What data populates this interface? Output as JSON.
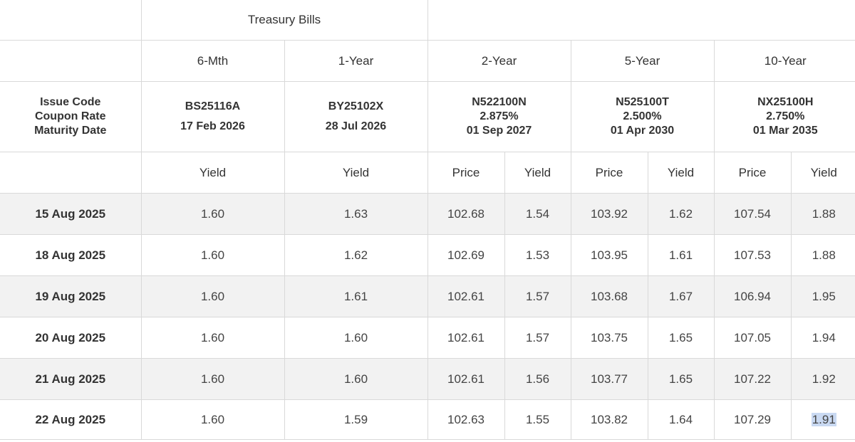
{
  "header": {
    "group_label": "Treasury Bills",
    "row_label_lines": [
      "Issue Code",
      "Coupon Rate",
      "Maturity Date"
    ],
    "tenors": [
      "6-Mth",
      "1-Year",
      "2-Year",
      "5-Year",
      "10-Year"
    ],
    "bills": [
      {
        "code": "BS25116A",
        "maturity": "17 Feb 2026"
      },
      {
        "code": "BY25102X",
        "maturity": "28 Jul 2026"
      }
    ],
    "bonds": [
      {
        "code": "N522100N",
        "coupon": "2.875%",
        "maturity": "01 Sep 2027"
      },
      {
        "code": "N525100T",
        "coupon": "2.500%",
        "maturity": "01 Apr 2030"
      },
      {
        "code": "NX25100H",
        "coupon": "2.750%",
        "maturity": "01 Mar 2035"
      }
    ],
    "col_yield": "Yield",
    "col_price": "Price"
  },
  "rows": [
    {
      "date": "15 Aug 2025",
      "v": [
        "1.60",
        "1.63",
        "102.68",
        "1.54",
        "103.92",
        "1.62",
        "107.54",
        "1.88"
      ]
    },
    {
      "date": "18 Aug 2025",
      "v": [
        "1.60",
        "1.62",
        "102.69",
        "1.53",
        "103.95",
        "1.61",
        "107.53",
        "1.88"
      ]
    },
    {
      "date": "19 Aug 2025",
      "v": [
        "1.60",
        "1.61",
        "102.61",
        "1.57",
        "103.68",
        "1.67",
        "106.94",
        "1.95"
      ]
    },
    {
      "date": "20 Aug 2025",
      "v": [
        "1.60",
        "1.60",
        "102.61",
        "1.57",
        "103.75",
        "1.65",
        "107.05",
        "1.94"
      ]
    },
    {
      "date": "21 Aug 2025",
      "v": [
        "1.60",
        "1.60",
        "102.61",
        "1.56",
        "103.77",
        "1.65",
        "107.22",
        "1.92"
      ]
    },
    {
      "date": "22 Aug 2025",
      "v": [
        "1.60",
        "1.59",
        "102.63",
        "1.55",
        "103.82",
        "1.64",
        "107.29",
        "1.91"
      ]
    }
  ],
  "colors": {
    "border": "#d9d9d9",
    "stripe": "#f2f2f2",
    "selection": "#c9d9f2"
  }
}
